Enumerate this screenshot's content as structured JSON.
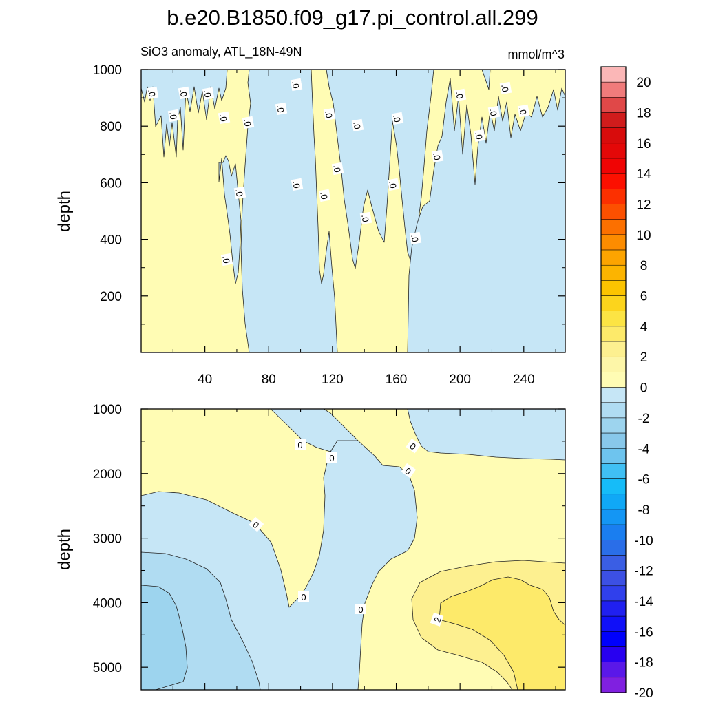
{
  "chart_data": {
    "type": "heatmap",
    "title": "b.e20.B1850.f09_g17.pi_control.all.299",
    "subtitle_left": "SiO3 anomaly, ATL_18N-49N",
    "units": "mmol/m^3",
    "panels": [
      {
        "id": "upper",
        "ylabel": "depth",
        "yrange": [
          1000,
          0
        ],
        "yticks": [
          200,
          400,
          600,
          800,
          1000
        ],
        "xrange": [
          0,
          266
        ],
        "xticks": [
          40,
          80,
          120,
          160,
          200,
          240
        ],
        "contour_labels": [
          ".0",
          ".0",
          ".0",
          ".0",
          ".0",
          ".0",
          ".0",
          ".0",
          ".0",
          ".0",
          ".0",
          ".0",
          ".0",
          ".0",
          ".0",
          ".0",
          ".0",
          ".0",
          ".0",
          ".0",
          ".0",
          ".0",
          ".0",
          ".0",
          ".0"
        ],
        "regions": [
          {
            "level": "0 to 1",
            "description": "upper-left and central columns positive"
          },
          {
            "level": "-1 to 0",
            "description": "x 60-120 and x > 166 negative below 300 m"
          }
        ]
      },
      {
        "id": "lower",
        "ylabel": "depth",
        "yrange": [
          1000,
          5350
        ],
        "yticks": [
          1000,
          2000,
          3000,
          4000,
          5000
        ],
        "xrange": [
          0,
          266
        ],
        "contour_labels": [
          "0",
          "0",
          "0",
          "0",
          "0",
          "0",
          "0",
          "2"
        ],
        "regions": [
          {
            "level": "0 to 1",
            "description": "shallow left and right-side positive"
          },
          {
            "level": "-1 to 0",
            "description": "central trough and left deep negative"
          },
          {
            "level": "-2 to -1",
            "description": "left bottom below 3300 m"
          },
          {
            "level": "-3 to -2",
            "description": "far left bottom below 3800 m"
          },
          {
            "level": "1 to 2",
            "description": "right bottom below 3500 m"
          },
          {
            "level": "2 to 3",
            "description": "right bottom core below 4200 m"
          }
        ]
      }
    ],
    "colorbar": {
      "labels": [
        "20",
        "18",
        "16",
        "14",
        "12",
        "10",
        "8",
        "6",
        "4",
        "2",
        "0",
        "-2",
        "-4",
        "-6",
        "-8",
        "-10",
        "-12",
        "-14",
        "-16",
        "-18",
        "-20"
      ],
      "colors": [
        "#fbb7b7",
        "#f07b7b",
        "#e04848",
        "#d01c1c",
        "#d80c0c",
        "#e40808",
        "#f00404",
        "#fc1000",
        "#fc3000",
        "#fc5000",
        "#fc7000",
        "#fc8c00",
        "#fca400",
        "#fcb400",
        "#fcc400",
        "#fcd41c",
        "#fce444",
        "#fdea6a",
        "#fdf090",
        "#fdf6a8",
        "#fffcb4",
        "#c6e6f6",
        "#b0dcf2",
        "#9dd4ee",
        "#88c8ea",
        "#6ec4ee",
        "#40c0f4",
        "#16bcf8",
        "#10a8f6",
        "#1496f4",
        "#1a7ef0",
        "#2a6ee8",
        "#3a5ee4",
        "#3c50e4",
        "#3040ec",
        "#2020f0",
        "#1010f8",
        "#0000fc",
        "#2800f0",
        "#5a18e8",
        "#8020e0"
      ]
    }
  },
  "colors": {
    "pos1": "#fffcb4",
    "pos2": "#fdf090",
    "pos3": "#fdea6a",
    "neg1": "#c6e6f6",
    "neg2": "#b0dcf2",
    "neg3": "#9dd4ee"
  }
}
